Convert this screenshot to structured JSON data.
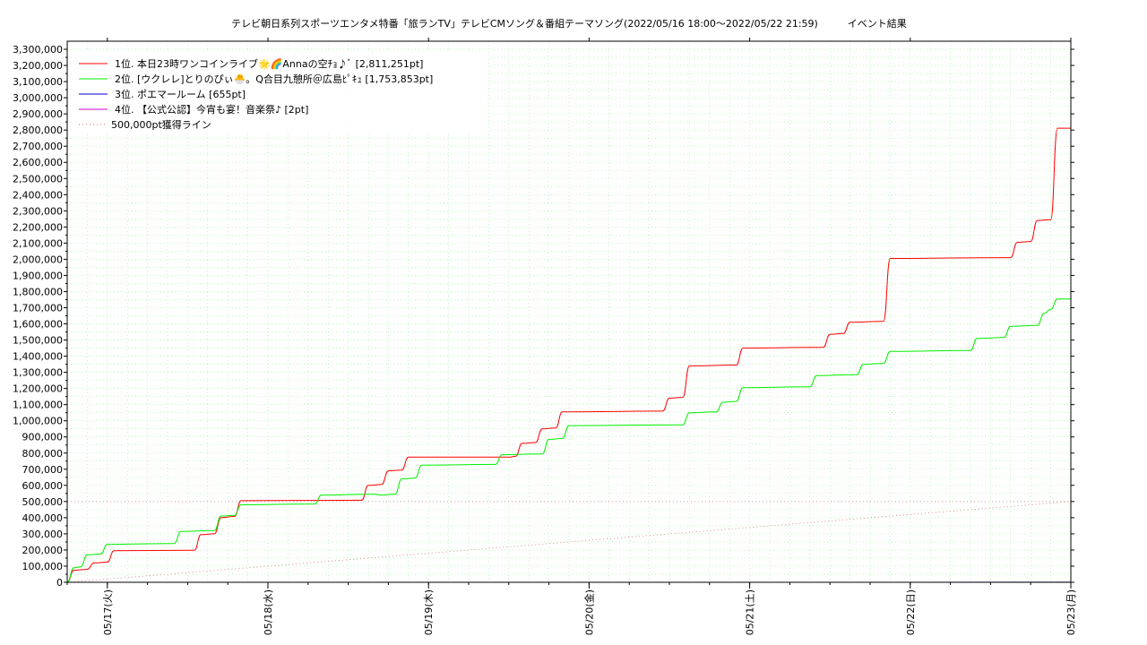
{
  "chart_data": {
    "type": "line",
    "title": "テレビ朝日系列スポーツエンタメ特番「旅ランTV」テレビCMソング＆番組テーマソング(2022/05/16 18:00〜2022/05/22 21:59)　　　イベント結果",
    "xlabel": "",
    "ylabel": "",
    "x_range": [
      "2022-05-16 18:00",
      "2022-05-23 00:00"
    ],
    "ylim": [
      0,
      3350000
    ],
    "y_ticks": [
      0,
      100000,
      200000,
      300000,
      400000,
      500000,
      600000,
      700000,
      800000,
      900000,
      1000000,
      1100000,
      1200000,
      1300000,
      1400000,
      1500000,
      1600000,
      1700000,
      1800000,
      1900000,
      2000000,
      2100000,
      2200000,
      2300000,
      2400000,
      2500000,
      2600000,
      2700000,
      2800000,
      2900000,
      3000000,
      3100000,
      3200000,
      3300000
    ],
    "y_tick_labels": [
      "0",
      "100,000",
      "200,000",
      "300,000",
      "400,000",
      "500,000",
      "600,000",
      "700,000",
      "800,000",
      "900,000",
      "1,000,000",
      "1,100,000",
      "1,200,000",
      "1,300,000",
      "1,400,000",
      "1,500,000",
      "1,600,000",
      "1,700,000",
      "1,800,000",
      "1,900,000",
      "2,000,000",
      "2,100,000",
      "2,200,000",
      "2,300,000",
      "2,400,000",
      "2,500,000",
      "2,600,000",
      "2,700,000",
      "2,800,000",
      "2,900,000",
      "3,000,000",
      "3,100,000",
      "3,200,000",
      "3,300,000"
    ],
    "x_ticks": [
      "2022-05-17 00:00",
      "2022-05-18 00:00",
      "2022-05-19 00:00",
      "2022-05-20 00:00",
      "2022-05-21 00:00",
      "2022-05-22 00:00",
      "2022-05-23 00:00"
    ],
    "x_tick_labels": [
      "05/17(火)",
      "05/18(水)",
      "05/19(木)",
      "05/20(金)",
      "05/21(土)",
      "05/22(日)",
      "05/23(月)"
    ],
    "grid": true,
    "legend_position": "top-left",
    "series": [
      {
        "name": "1位. 本日23時ワンコインライブ🌟🌈Annaの空ﾁｮ♪ﾞ [2,811,251pt]",
        "color": "#ff0000",
        "points": [
          [
            "2022-05-16 18:00",
            0
          ],
          [
            "2022-05-16 19:00",
            75000
          ],
          [
            "2022-05-16 21:00",
            80000
          ],
          [
            "2022-05-16 22:00",
            120000
          ],
          [
            "2022-05-17 00:00",
            125000
          ],
          [
            "2022-05-17 01:00",
            195000
          ],
          [
            "2022-05-17 13:00",
            198000
          ],
          [
            "2022-05-17 14:00",
            295000
          ],
          [
            "2022-05-17 16:00",
            300000
          ],
          [
            "2022-05-17 17:00",
            400000
          ],
          [
            "2022-05-17 19:00",
            408000
          ],
          [
            "2022-05-17 20:00",
            505000
          ],
          [
            "2022-05-18 14:00",
            508000
          ],
          [
            "2022-05-18 15:00",
            600000
          ],
          [
            "2022-05-18 17:00",
            605000
          ],
          [
            "2022-05-18 18:00",
            690000
          ],
          [
            "2022-05-18 20:00",
            695000
          ],
          [
            "2022-05-18 21:00",
            775000
          ],
          [
            "2022-05-19 12:00",
            775000
          ],
          [
            "2022-05-19 13:00",
            780000
          ],
          [
            "2022-05-19 14:00",
            860000
          ],
          [
            "2022-05-19 16:00",
            865000
          ],
          [
            "2022-05-19 17:00",
            950000
          ],
          [
            "2022-05-19 19:00",
            955000
          ],
          [
            "2022-05-19 20:00",
            1055000
          ],
          [
            "2022-05-20 11:00",
            1060000
          ],
          [
            "2022-05-20 12:00",
            1140000
          ],
          [
            "2022-05-20 14:00",
            1145000
          ],
          [
            "2022-05-20 15:00",
            1340000
          ],
          [
            "2022-05-20 22:00",
            1345000
          ],
          [
            "2022-05-20 23:00",
            1450000
          ],
          [
            "2022-05-21 11:00",
            1455000
          ],
          [
            "2022-05-21 12:00",
            1535000
          ],
          [
            "2022-05-21 14:00",
            1540000
          ],
          [
            "2022-05-21 15:00",
            1610000
          ],
          [
            "2022-05-21 20:00",
            1615000
          ],
          [
            "2022-05-21 21:00",
            2005000
          ],
          [
            "2022-05-22 15:00",
            2010000
          ],
          [
            "2022-05-22 16:00",
            2105000
          ],
          [
            "2022-05-22 18:00",
            2110000
          ],
          [
            "2022-05-22 19:00",
            2240000
          ],
          [
            "2022-05-22 21:00",
            2245000
          ],
          [
            "2022-05-22 22:00",
            2811251
          ],
          [
            "2022-05-23 00:00",
            2811251
          ]
        ]
      },
      {
        "name": "2位. [ウクレレ]とりのぴぃ🐣。Q合目九憩所＠広島ﾋﾟｷｭ [1,753,853pt]",
        "color": "#00ee00",
        "points": [
          [
            "2022-05-16 18:00",
            0
          ],
          [
            "2022-05-16 19:00",
            90000
          ],
          [
            "2022-05-16 20:00",
            95000
          ],
          [
            "2022-05-16 21:00",
            170000
          ],
          [
            "2022-05-16 23:00",
            175000
          ],
          [
            "2022-05-17 00:00",
            235000
          ],
          [
            "2022-05-17 10:00",
            240000
          ],
          [
            "2022-05-17 11:00",
            315000
          ],
          [
            "2022-05-17 16:00",
            320000
          ],
          [
            "2022-05-17 17:00",
            410000
          ],
          [
            "2022-05-17 19:00",
            415000
          ],
          [
            "2022-05-17 20:00",
            480000
          ],
          [
            "2022-05-18 07:00",
            485000
          ],
          [
            "2022-05-18 08:00",
            540000
          ],
          [
            "2022-05-18 16:00",
            545000
          ],
          [
            "2022-05-18 17:00",
            540000
          ],
          [
            "2022-05-18 19:00",
            545000
          ],
          [
            "2022-05-18 20:00",
            640000
          ],
          [
            "2022-05-18 22:00",
            645000
          ],
          [
            "2022-05-18 23:00",
            725000
          ],
          [
            "2022-05-19 10:00",
            730000
          ],
          [
            "2022-05-19 11:00",
            790000
          ],
          [
            "2022-05-19 17:00",
            795000
          ],
          [
            "2022-05-19 18:00",
            885000
          ],
          [
            "2022-05-19 20:00",
            890000
          ],
          [
            "2022-05-19 21:00",
            970000
          ],
          [
            "2022-05-20 14:00",
            975000
          ],
          [
            "2022-05-20 15:00",
            1050000
          ],
          [
            "2022-05-20 19:00",
            1055000
          ],
          [
            "2022-05-20 20:00",
            1115000
          ],
          [
            "2022-05-20 22:00",
            1120000
          ],
          [
            "2022-05-20 23:00",
            1205000
          ],
          [
            "2022-05-21 09:00",
            1210000
          ],
          [
            "2022-05-21 10:00",
            1280000
          ],
          [
            "2022-05-21 16:00",
            1285000
          ],
          [
            "2022-05-21 17:00",
            1350000
          ],
          [
            "2022-05-21 20:00",
            1355000
          ],
          [
            "2022-05-21 21:00",
            1430000
          ],
          [
            "2022-05-22 09:00",
            1435000
          ],
          [
            "2022-05-22 10:00",
            1510000
          ],
          [
            "2022-05-22 14:00",
            1515000
          ],
          [
            "2022-05-22 15:00",
            1585000
          ],
          [
            "2022-05-22 19:00",
            1590000
          ],
          [
            "2022-05-22 20:00",
            1665000
          ],
          [
            "2022-05-22 21:00",
            1690000
          ],
          [
            "2022-05-22 22:00",
            1753853
          ],
          [
            "2022-05-23 00:00",
            1753853
          ]
        ]
      },
      {
        "name": "3位. ポエマールーム [655pt]",
        "color": "#0000cc",
        "points": [
          [
            "2022-05-21 00:00",
            0
          ],
          [
            "2022-05-23 00:00",
            655
          ]
        ]
      },
      {
        "name": "4位. 【公式公認】今宵も宴！音楽祭♪ [2pt]",
        "color": "#cc00cc",
        "points": [
          [
            "2022-05-21 00:00",
            0
          ],
          [
            "2022-05-23 00:00",
            2
          ]
        ]
      },
      {
        "name": "500,000pt獲得ライン",
        "color": "#c07878",
        "dashed": true,
        "points": [
          [
            "2022-05-16 18:00",
            0
          ],
          [
            "2022-05-23 00:00",
            500000
          ]
        ]
      }
    ],
    "reference_lines": [
      {
        "y": 500000,
        "color": "#c07878",
        "dashed": true
      }
    ]
  }
}
